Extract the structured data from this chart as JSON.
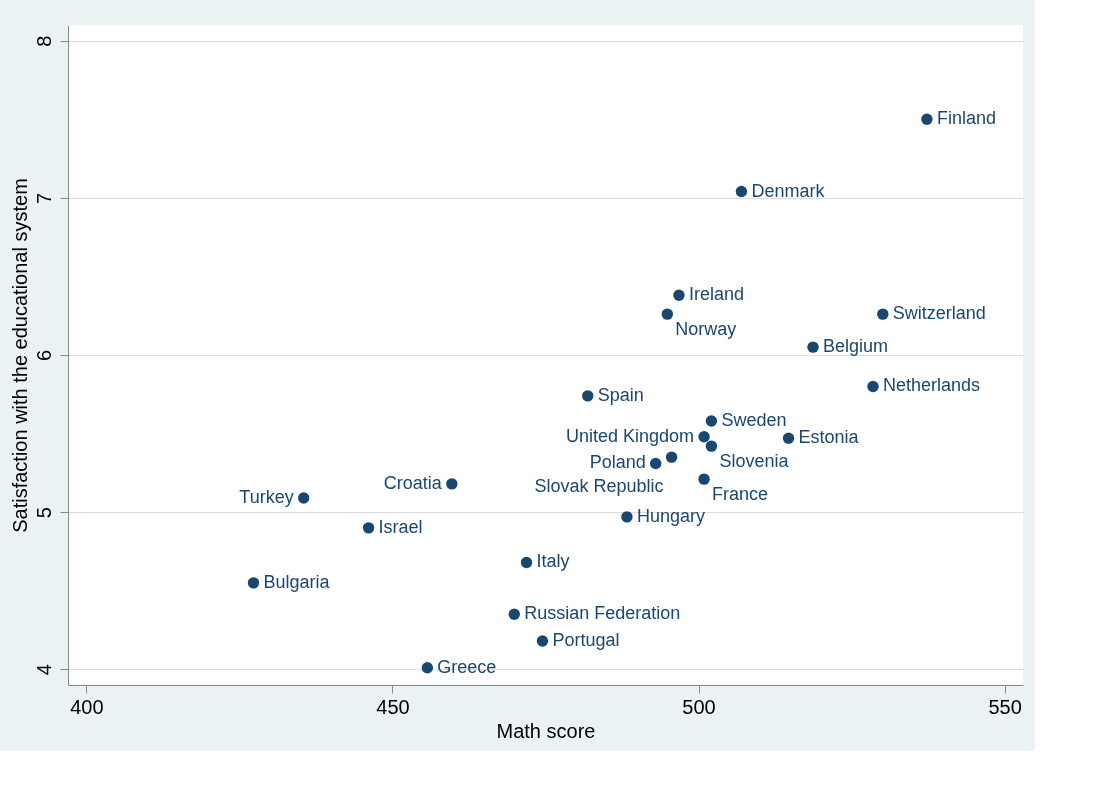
{
  "chart_data": {
    "type": "scatter",
    "xlabel": "Math score",
    "ylabel": "Satisfaction with the educational system",
    "xlim": [
      397,
      553
    ],
    "xticks": [
      400,
      450,
      500,
      550
    ],
    "ylim": [
      3.9,
      8.1
    ],
    "yticks": [
      4,
      5,
      6,
      7,
      8
    ],
    "grid": "y",
    "marker": "circle",
    "series": [
      {
        "color": "#1a476f",
        "x": [
          537.3,
          507.0,
          496.8,
          494.9,
          530.1,
          518.7,
          528.5,
          481.9,
          502.1,
          500.9,
          514.7,
          502.1,
          495.6,
          493.0,
          500.9,
          459.7,
          435.5,
          488.3,
          446.1,
          471.9,
          427.3,
          469.9,
          474.5,
          455.7
        ],
        "values": [
          7.5,
          7.04,
          6.38,
          6.26,
          6.26,
          6.05,
          5.8,
          5.74,
          5.58,
          5.48,
          5.47,
          5.42,
          5.35,
          5.31,
          5.21,
          5.18,
          5.09,
          4.97,
          4.9,
          4.68,
          4.55,
          4.35,
          4.18,
          4.01
        ]
      }
    ],
    "annotations": [
      {
        "text": "Finland",
        "x": 537.3,
        "y": 7.5
      },
      {
        "text": "Denmark",
        "x": 507.0,
        "y": 7.04
      },
      {
        "text": "Ireland",
        "x": 496.8,
        "y": 6.38
      },
      {
        "text": "Norway",
        "x": 494.9,
        "y": 6.26
      },
      {
        "text": "Switzerland",
        "x": 530.1,
        "y": 6.26
      },
      {
        "text": "Belgium",
        "x": 518.7,
        "y": 6.05
      },
      {
        "text": "Netherlands",
        "x": 528.5,
        "y": 5.8
      },
      {
        "text": "Spain",
        "x": 481.9,
        "y": 5.74
      },
      {
        "text": "Sweden",
        "x": 502.1,
        "y": 5.58
      },
      {
        "text": "United Kingdom",
        "x": 500.9,
        "y": 5.48
      },
      {
        "text": "Estonia",
        "x": 514.7,
        "y": 5.47
      },
      {
        "text": "Slovenia",
        "x": 502.1,
        "y": 5.42
      },
      {
        "text": "Slovak Republic",
        "x": 495.6,
        "y": 5.35
      },
      {
        "text": "Poland",
        "x": 493.0,
        "y": 5.31
      },
      {
        "text": "France",
        "x": 500.9,
        "y": 5.21
      },
      {
        "text": "Croatia",
        "x": 459.7,
        "y": 5.18
      },
      {
        "text": "Turkey",
        "x": 435.5,
        "y": 5.09
      },
      {
        "text": "Hungary",
        "x": 488.3,
        "y": 4.97
      },
      {
        "text": "Israel",
        "x": 446.1,
        "y": 4.9
      },
      {
        "text": "Italy",
        "x": 471.9,
        "y": 4.68
      },
      {
        "text": "Bulgaria",
        "x": 427.3,
        "y": 4.55
      },
      {
        "text": "Russian Federation",
        "x": 469.9,
        "y": 4.35
      },
      {
        "text": "Portugal",
        "x": 474.5,
        "y": 4.18
      },
      {
        "text": "Greece",
        "x": 455.7,
        "y": 4.01
      }
    ]
  }
}
